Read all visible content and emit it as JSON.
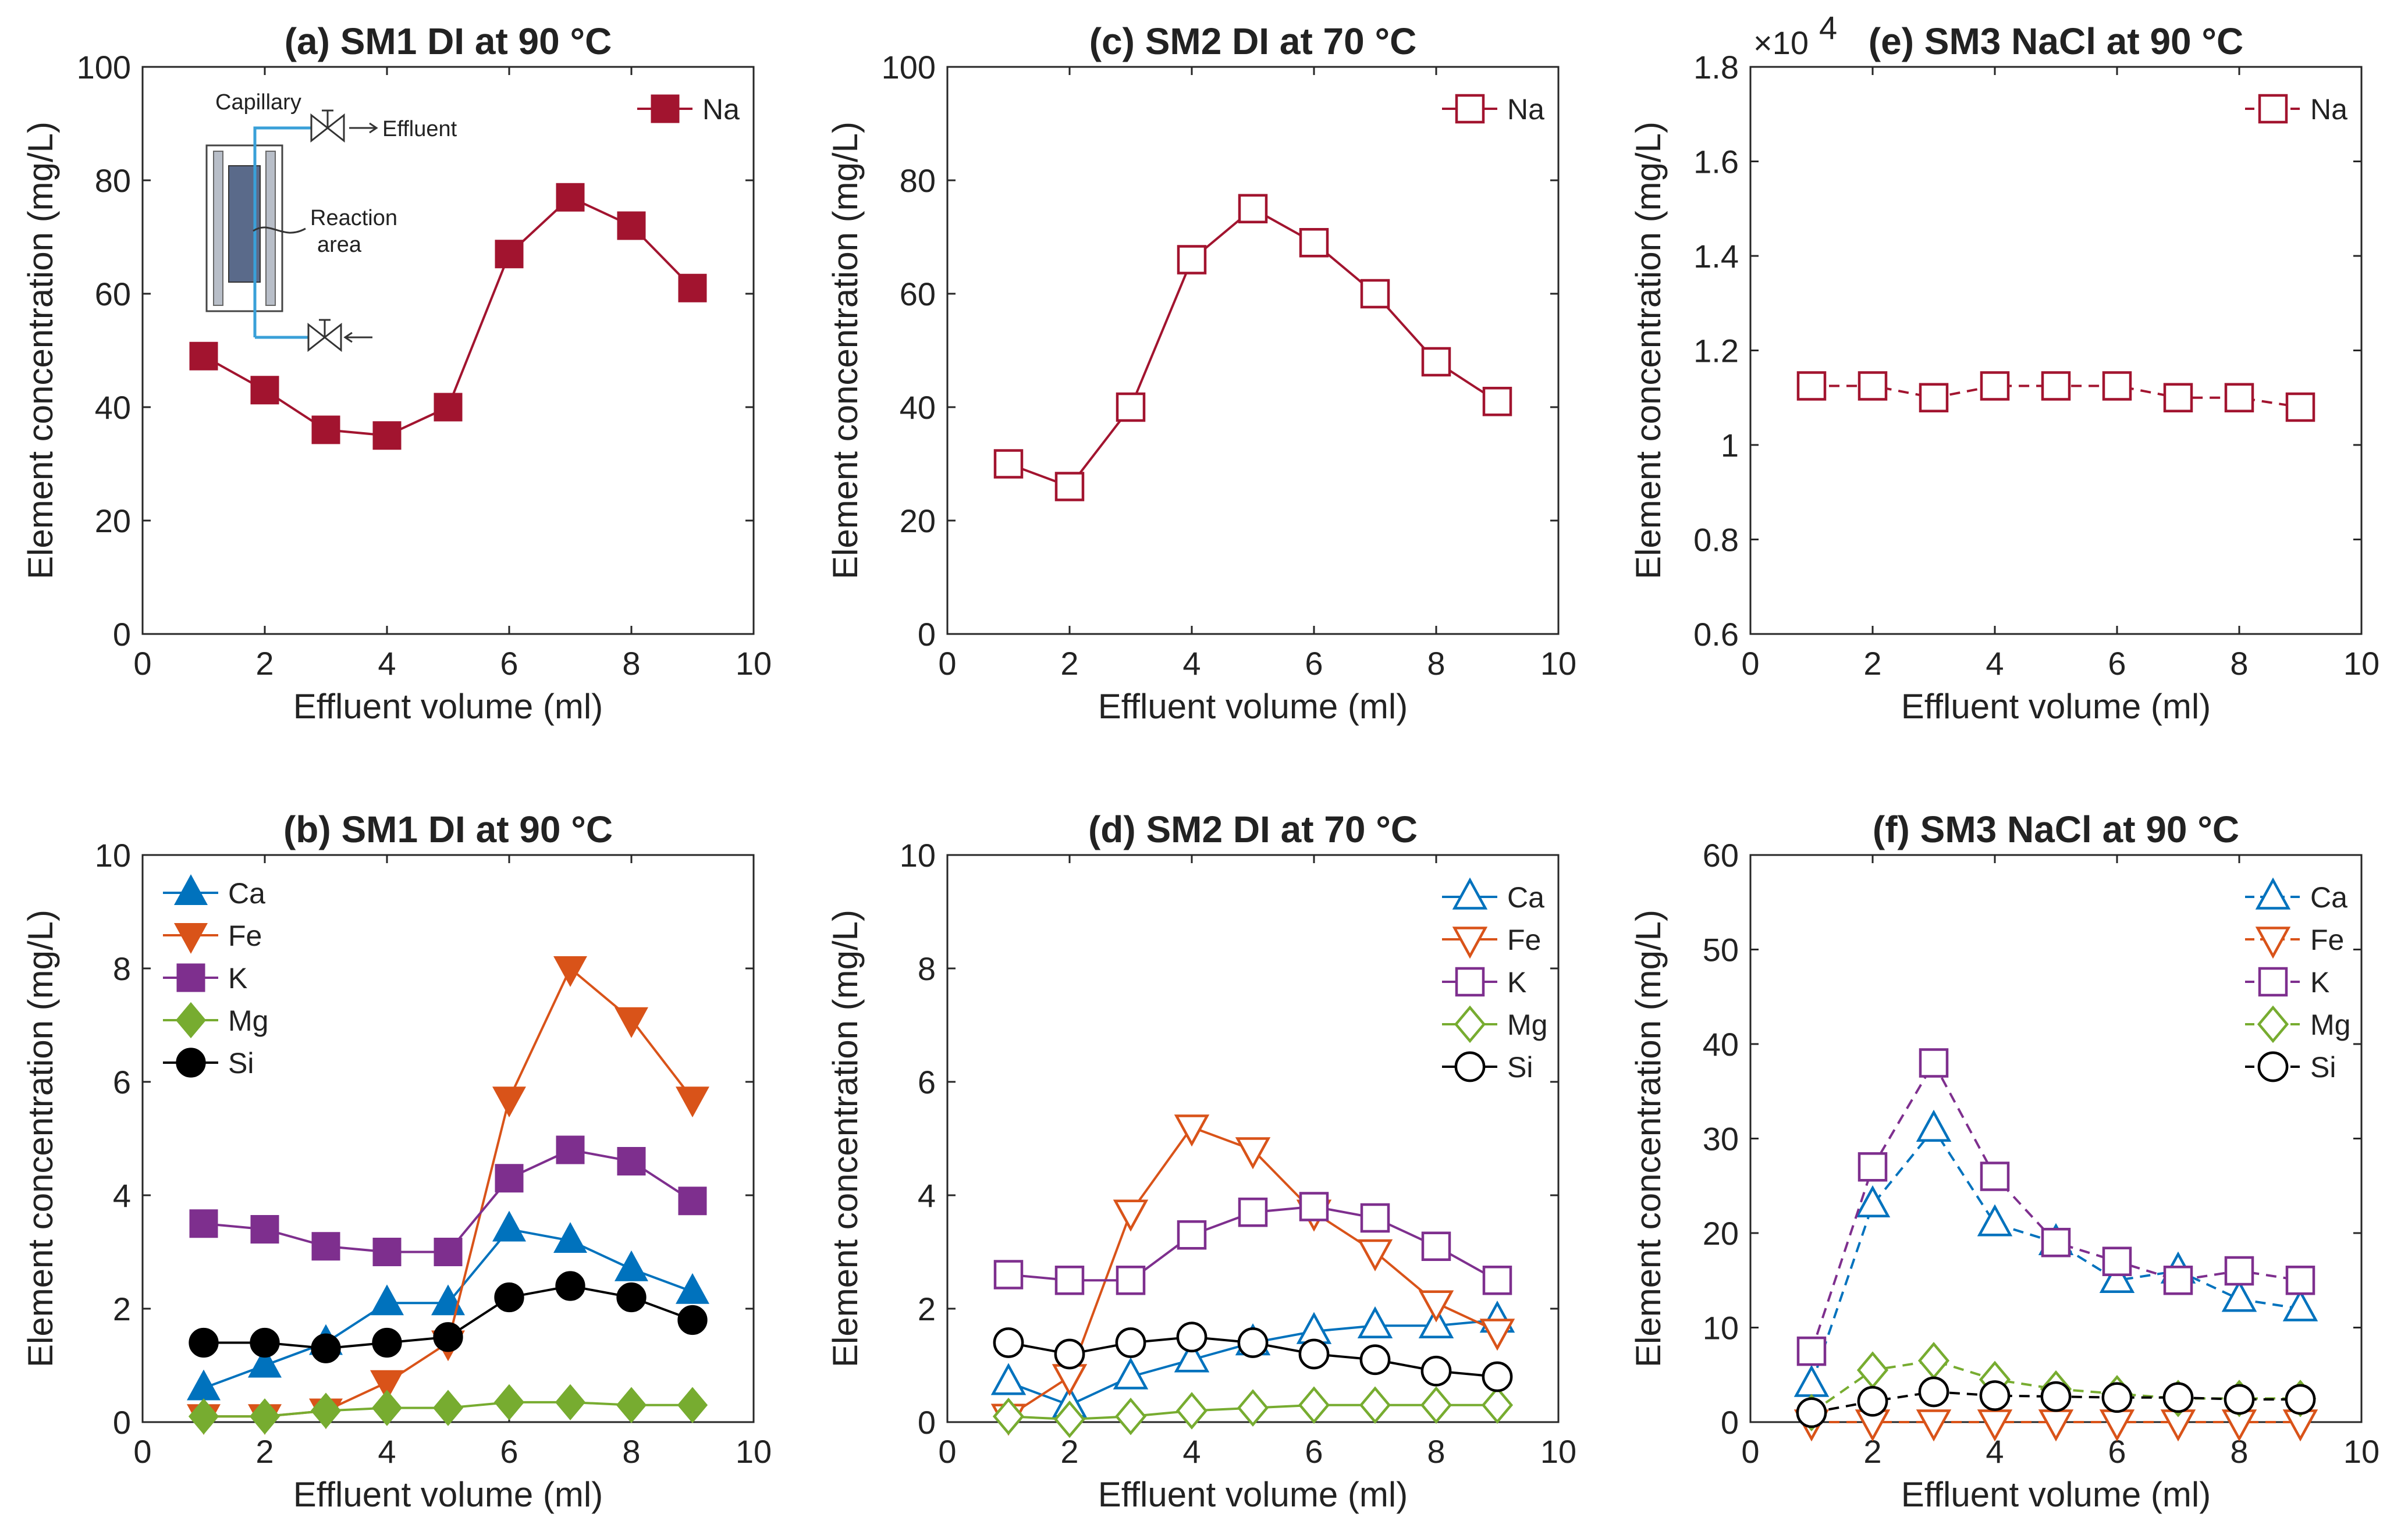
{
  "colors": {
    "Na": "#a2142f",
    "Ca": "#0072bd",
    "Fe": "#d95319",
    "K": "#7e2f8e",
    "Mg": "#77ac30",
    "Si": "#000000"
  },
  "inset": {
    "capillary": "Capillary",
    "effluent": "Effluent",
    "reaction_line1": "Reaction",
    "reaction_line2": "area"
  },
  "chart_data": [
    {
      "id": "a",
      "type": "line",
      "title": "(a) SM1 DI at 90 °C",
      "xlabel": "Effluent volume (ml)",
      "ylabel": "Element concentration (mg/L)",
      "xlim": [
        0,
        10
      ],
      "ylim": [
        0,
        100
      ],
      "xticks": [
        0,
        2,
        4,
        6,
        8,
        10
      ],
      "yticks": [
        0,
        20,
        40,
        60,
        80,
        100
      ],
      "ytick_labels": [
        "0",
        "20",
        "40",
        "60",
        "80",
        "100"
      ],
      "multiplier": "",
      "filled": true,
      "dashed": false,
      "legend": "top-right",
      "x": [
        1,
        2,
        3,
        4,
        5,
        6,
        7,
        8,
        9
      ],
      "series": [
        {
          "name": "Na",
          "marker": "square",
          "values": [
            49,
            43,
            36,
            35,
            40,
            67,
            77,
            72,
            61
          ]
        }
      ]
    },
    {
      "id": "c",
      "type": "line",
      "title": "(c) SM2 DI at 70 °C",
      "xlabel": "Effluent volume (ml)",
      "ylabel": "Element concentration (mg/L)",
      "xlim": [
        0,
        10
      ],
      "ylim": [
        0,
        100
      ],
      "xticks": [
        0,
        2,
        4,
        6,
        8,
        10
      ],
      "yticks": [
        0,
        20,
        40,
        60,
        80,
        100
      ],
      "ytick_labels": [
        "0",
        "20",
        "40",
        "60",
        "80",
        "100"
      ],
      "multiplier": "",
      "filled": false,
      "dashed": false,
      "legend": "top-right",
      "x": [
        1,
        2,
        3,
        4,
        5,
        6,
        7,
        8,
        9
      ],
      "series": [
        {
          "name": "Na",
          "marker": "square",
          "values": [
            30,
            26,
            40,
            66,
            75,
            69,
            60,
            48,
            41
          ]
        }
      ]
    },
    {
      "id": "e",
      "type": "line",
      "title": "(e) SM3 NaCl at 90 °C",
      "xlabel": "Effluent volume (ml)",
      "ylabel": "Element concentration (mg/L)",
      "xlim": [
        0,
        10
      ],
      "ylim": [
        6000,
        18000
      ],
      "xticks": [
        0,
        2,
        4,
        6,
        8,
        10
      ],
      "yticks": [
        6000,
        8000,
        10000,
        12000,
        14000,
        16000,
        18000
      ],
      "ytick_labels": [
        "0.6",
        "0.8",
        "1",
        "1.2",
        "1.4",
        "1.6",
        "1.8"
      ],
      "multiplier": "×10",
      "multiplier_exp": "4",
      "filled": false,
      "dashed": true,
      "legend": "top-right",
      "x": [
        1,
        2,
        3,
        4,
        5,
        6,
        7,
        8,
        9
      ],
      "series": [
        {
          "name": "Na",
          "marker": "square",
          "values": [
            11250,
            11250,
            11000,
            11250,
            11250,
            11250,
            11000,
            11000,
            10800
          ]
        }
      ]
    },
    {
      "id": "b",
      "type": "line",
      "title": "(b) SM1 DI at 90 °C",
      "xlabel": "Effluent volume (ml)",
      "ylabel": "Element concentration (mg/L)",
      "xlim": [
        0,
        10
      ],
      "ylim": [
        0,
        10
      ],
      "xticks": [
        0,
        2,
        4,
        6,
        8,
        10
      ],
      "yticks": [
        0,
        2,
        4,
        6,
        8,
        10
      ],
      "ytick_labels": [
        "0",
        "2",
        "4",
        "6",
        "8",
        "10"
      ],
      "multiplier": "",
      "filled": true,
      "dashed": false,
      "legend": "top-left",
      "x": [
        1,
        2,
        3,
        4,
        5,
        6,
        7,
        8,
        9
      ],
      "series": [
        {
          "name": "Ca",
          "marker": "triangle-up",
          "values": [
            0.6,
            1.0,
            1.4,
            2.1,
            2.1,
            3.4,
            3.2,
            2.7,
            2.3
          ]
        },
        {
          "name": "Fe",
          "marker": "triangle-down",
          "values": [
            0.1,
            0.1,
            0.2,
            0.7,
            1.4,
            5.7,
            8.0,
            7.1,
            5.7
          ]
        },
        {
          "name": "K",
          "marker": "square",
          "values": [
            3.5,
            3.4,
            3.1,
            3.0,
            3.0,
            4.3,
            4.8,
            4.6,
            3.9
          ]
        },
        {
          "name": "Mg",
          "marker": "diamond",
          "values": [
            0.1,
            0.1,
            0.2,
            0.25,
            0.25,
            0.35,
            0.35,
            0.3,
            0.3
          ]
        },
        {
          "name": "Si",
          "marker": "circle",
          "values": [
            1.4,
            1.4,
            1.3,
            1.4,
            1.5,
            2.2,
            2.4,
            2.2,
            1.8
          ]
        }
      ]
    },
    {
      "id": "d",
      "type": "line",
      "title": "(d) SM2 DI at 70 °C",
      "xlabel": "Effluent volume (ml)",
      "ylabel": "Element concentration (mg/L)",
      "xlim": [
        0,
        10
      ],
      "ylim": [
        0,
        10
      ],
      "xticks": [
        0,
        2,
        4,
        6,
        8,
        10
      ],
      "yticks": [
        0,
        2,
        4,
        6,
        8,
        10
      ],
      "ytick_labels": [
        "0",
        "2",
        "4",
        "6",
        "8",
        "10"
      ],
      "multiplier": "",
      "filled": false,
      "dashed": false,
      "legend": "top-right",
      "x": [
        1,
        2,
        3,
        4,
        5,
        6,
        7,
        8,
        9
      ],
      "series": [
        {
          "name": "Ca",
          "marker": "triangle-up",
          "values": [
            0.7,
            0.3,
            0.8,
            1.1,
            1.4,
            1.6,
            1.7,
            1.7,
            1.8
          ]
        },
        {
          "name": "Fe",
          "marker": "triangle-down",
          "values": [
            0.1,
            0.8,
            3.7,
            5.2,
            4.8,
            3.7,
            3.0,
            2.1,
            1.6
          ]
        },
        {
          "name": "K",
          "marker": "square",
          "values": [
            2.6,
            2.5,
            2.5,
            3.3,
            3.7,
            3.8,
            3.6,
            3.1,
            2.5
          ]
        },
        {
          "name": "Mg",
          "marker": "diamond",
          "values": [
            0.1,
            0.05,
            0.1,
            0.2,
            0.25,
            0.3,
            0.3,
            0.3,
            0.3
          ]
        },
        {
          "name": "Si",
          "marker": "circle",
          "values": [
            1.4,
            1.2,
            1.4,
            1.5,
            1.4,
            1.2,
            1.1,
            0.9,
            0.8
          ]
        }
      ]
    },
    {
      "id": "f",
      "type": "line",
      "title": "(f) SM3 NaCl at 90 °C",
      "xlabel": "Effluent volume (ml)",
      "ylabel": "Element concentration (mg/L)",
      "xlim": [
        0,
        10
      ],
      "ylim": [
        0,
        60
      ],
      "xticks": [
        0,
        2,
        4,
        6,
        8,
        10
      ],
      "yticks": [
        0,
        10,
        20,
        30,
        40,
        50,
        60
      ],
      "ytick_labels": [
        "0",
        "10",
        "20",
        "30",
        "40",
        "50",
        "60"
      ],
      "multiplier": "",
      "filled": false,
      "dashed": true,
      "legend": "top-right",
      "x": [
        1,
        2,
        3,
        4,
        5,
        6,
        7,
        8,
        9
      ],
      "series": [
        {
          "name": "Ca",
          "marker": "triangle-up",
          "values": [
            4,
            23,
            31,
            21,
            19,
            15,
            16,
            13,
            12
          ]
        },
        {
          "name": "Fe",
          "marker": "triangle-down",
          "values": [
            0,
            0,
            0,
            0,
            0,
            0,
            0,
            0,
            0
          ]
        },
        {
          "name": "K",
          "marker": "square",
          "values": [
            7.5,
            27,
            38,
            26,
            19,
            17,
            15,
            16,
            15
          ]
        },
        {
          "name": "Mg",
          "marker": "diamond",
          "values": [
            1,
            5.5,
            6.5,
            4.5,
            3.5,
            3,
            2.5,
            2.5,
            2.5
          ]
        },
        {
          "name": "Si",
          "marker": "circle",
          "values": [
            1,
            2.2,
            3.2,
            2.8,
            2.7,
            2.6,
            2.6,
            2.4,
            2.4
          ]
        }
      ]
    }
  ]
}
